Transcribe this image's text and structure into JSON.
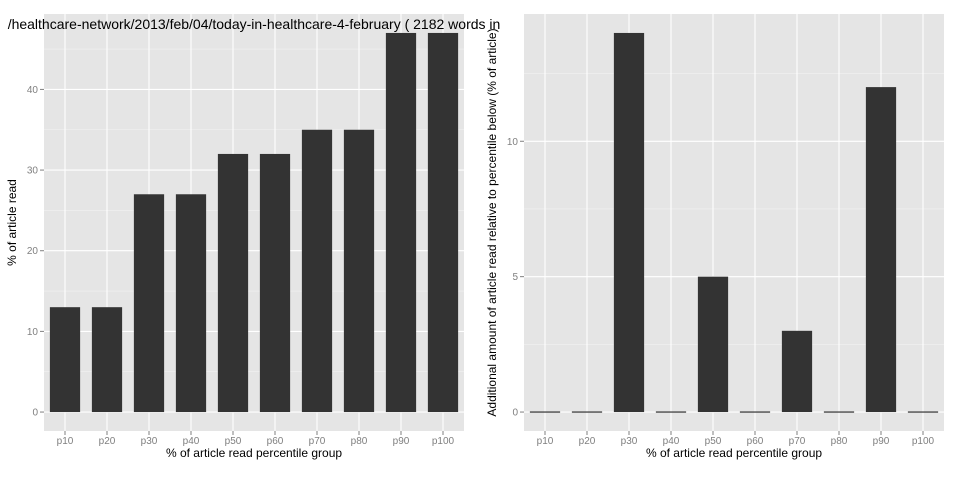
{
  "chart_data": [
    {
      "type": "bar",
      "title": "/healthcare-network/2013/feb/04/today-in-healthcare-4-february ( 2182 words in",
      "xlabel": "% of article read percentile group",
      "ylabel": "% of article read",
      "categories": [
        "p10",
        "p20",
        "p30",
        "p40",
        "p50",
        "p60",
        "p70",
        "p80",
        "p90",
        "p100"
      ],
      "values": [
        13,
        13,
        27,
        27,
        32,
        32,
        35,
        35,
        47,
        47
      ],
      "ylim": [
        -2.35,
        49.35
      ],
      "yticks": [
        "0",
        "10",
        "20",
        "30",
        "40"
      ],
      "bar_color": "#333333",
      "panel_color": "#e5e5e5",
      "grid": true,
      "legend": "none"
    },
    {
      "type": "bar",
      "title": "",
      "xlabel": "% of article read percentile group",
      "ylabel": "Additional amount of article read relative to percentile below (% of article)",
      "categories": [
        "p10",
        "p20",
        "p30",
        "p40",
        "p50",
        "p60",
        "p70",
        "p80",
        "p90",
        "p100"
      ],
      "values": [
        0,
        0,
        14,
        0,
        5,
        0,
        3,
        0,
        12,
        0
      ],
      "ylim": [
        -0.7,
        14.7
      ],
      "yticks": [
        "0",
        "5",
        "10"
      ],
      "bar_color": "#333333",
      "panel_color": "#e5e5e5",
      "grid": true,
      "legend": "none"
    }
  ]
}
